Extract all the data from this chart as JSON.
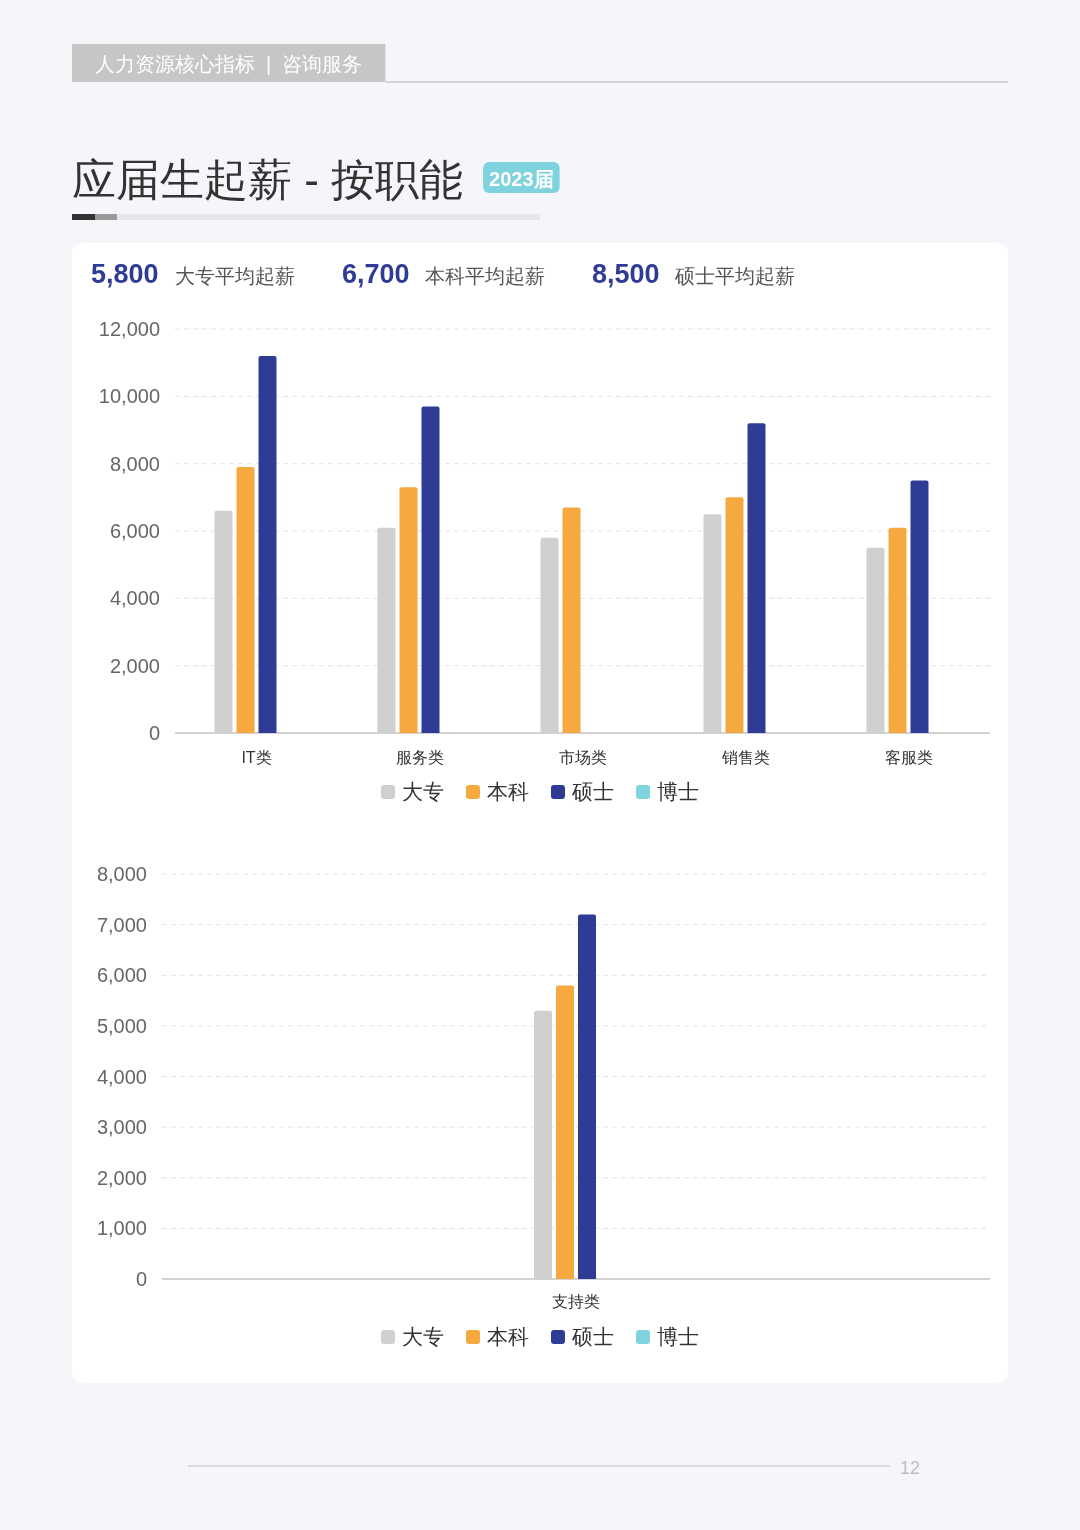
{
  "chart_data": [
    {
      "type": "other",
      "title": "应届生起薪 - 按职能",
      "subtitle": "2023届",
      "annotations": [
        "人力资源核心指标  |  咨询服务",
        "5,800",
        "大专平均起薪",
        "6,700",
        "本科平均起薪",
        "8,500",
        "硕士平均起薪",
        "12"
      ]
    },
    {
      "type": "bar",
      "categories": [
        "IT类",
        "服务类",
        "市场类",
        "销售类",
        "客服类"
      ],
      "series": [
        {
          "name": "大专",
          "color": "#d0d0d0",
          "values": [
            6600,
            6100,
            5800,
            6500,
            5500
          ]
        },
        {
          "name": "本科",
          "color": "#f5a93f",
          "values": [
            7900,
            7300,
            6700,
            7000,
            6100
          ]
        },
        {
          "name": "硕士",
          "color": "#2f3c96",
          "values": [
            11200,
            9700,
            null,
            9200,
            7500
          ]
        },
        {
          "name": "博士",
          "color": "#7fd3df",
          "values": [
            null,
            null,
            null,
            null,
            null
          ]
        }
      ],
      "ylim": [
        0,
        12000
      ],
      "yticks": [
        0,
        {
          "value": 2000,
          "label": "2,000"
        },
        {
          "value": 4000,
          "label": "4,000"
        },
        {
          "value": 6000,
          "label": "6,000"
        },
        {
          "value": 8000,
          "label": "8,000"
        },
        {
          "value": 10000,
          "label": "10,000"
        },
        {
          "value": 12000,
          "label": "12,000"
        }
      ],
      "grid": "y",
      "legend": "bottom"
    },
    {
      "type": "bar",
      "categories": [
        "支持类"
      ],
      "series": [
        {
          "name": "大专",
          "color": "#d0d0d0",
          "values": [
            5300
          ]
        },
        {
          "name": "本科",
          "color": "#f5a93f",
          "values": [
            5800
          ]
        },
        {
          "name": "硕士",
          "color": "#2f3c96",
          "values": [
            7200
          ]
        },
        {
          "name": "博士",
          "color": "#7fd3df",
          "values": [
            null
          ]
        }
      ],
      "ylim": [
        0,
        8000
      ],
      "yticks": [
        0,
        {
          "value": 1000,
          "label": "1,000"
        },
        {
          "value": 2000,
          "label": "2,000"
        },
        {
          "value": 3000,
          "label": "3,000"
        },
        {
          "value": 4000,
          "label": "4,000"
        },
        {
          "value": 5000,
          "label": "5,000"
        },
        {
          "value": 6000,
          "label": "6,000"
        },
        {
          "value": 7000,
          "label": "7,000"
        },
        {
          "value": 8000,
          "label": "8,000"
        }
      ],
      "grid": "y",
      "legend": "bottom"
    }
  ]
}
